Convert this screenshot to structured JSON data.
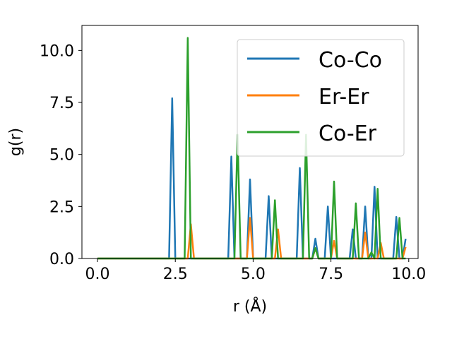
{
  "chart_data": {
    "type": "line",
    "title": "",
    "xlabel": "r (Å)",
    "ylabel": "g(r)",
    "xlim": [
      -0.5,
      10.3
    ],
    "ylim": [
      0,
      11.2
    ],
    "xticks": [
      "0.0",
      "2.5",
      "5.0",
      "7.5",
      "10.0"
    ],
    "yticks": [
      "0.0",
      "2.5",
      "5.0",
      "7.5",
      "10.0"
    ],
    "grid": false,
    "legend_position": "top-right",
    "series": [
      {
        "name": "Co-Co",
        "color": "#1f77b4",
        "peaks": [
          [
            2.4,
            7.7
          ],
          [
            4.3,
            4.9
          ],
          [
            4.9,
            3.8
          ],
          [
            5.5,
            3.0
          ],
          [
            6.5,
            4.35
          ],
          [
            7.0,
            0.95
          ],
          [
            7.4,
            2.5
          ],
          [
            8.2,
            1.4
          ],
          [
            8.6,
            2.5
          ],
          [
            8.9,
            3.45
          ],
          [
            9.6,
            2.0
          ],
          [
            9.9,
            0.95
          ]
        ]
      },
      {
        "name": "Er-Er",
        "color": "#ff7f0e",
        "peaks": [
          [
            3.0,
            1.65
          ],
          [
            4.9,
            1.95
          ],
          [
            5.8,
            1.4
          ],
          [
            7.0,
            0.5
          ],
          [
            7.6,
            0.85
          ],
          [
            8.6,
            1.25
          ],
          [
            9.1,
            0.75
          ],
          [
            9.9,
            0.55
          ]
        ]
      },
      {
        "name": "Co-Er",
        "color": "#2ca02c",
        "peaks": [
          [
            2.9,
            10.6
          ],
          [
            4.5,
            5.95
          ],
          [
            5.7,
            2.8
          ],
          [
            6.7,
            5.95
          ],
          [
            7.0,
            0.5
          ],
          [
            7.6,
            3.7
          ],
          [
            8.3,
            2.65
          ],
          [
            8.8,
            0.3
          ],
          [
            9.0,
            3.35
          ],
          [
            9.7,
            1.95
          ]
        ]
      }
    ]
  }
}
